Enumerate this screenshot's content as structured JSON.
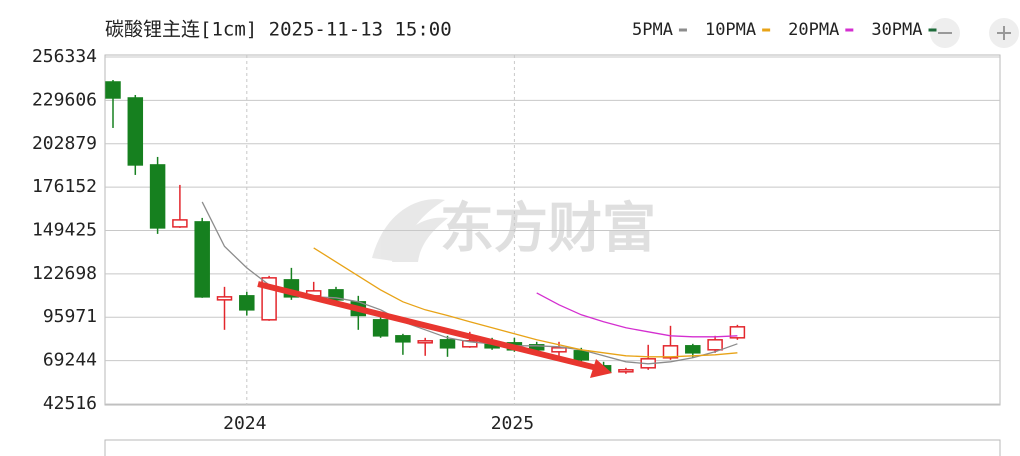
{
  "chart_data": {
    "type": "candlestick",
    "title": "碳酸锂主连[1cm] 2025-11-13 15:00",
    "watermark": "东方财富",
    "up_color": "#e3262c",
    "down_color": "#16801f",
    "categories": [
      null,
      null,
      null,
      null,
      null,
      null,
      "2024",
      null,
      null,
      null,
      null,
      null,
      null,
      null,
      null,
      null,
      null,
      null,
      "2025",
      null,
      null,
      null,
      null,
      null,
      null,
      null,
      null,
      null,
      null
    ],
    "open": [
      240939,
      231086,
      189828,
      151648,
      154727,
      106692,
      109158,
      94379,
      119010,
      109158,
      112853,
      105460,
      94379,
      84526,
      80216,
      82064,
      77755,
      80216,
      80216,
      78984,
      74675,
      75291,
      66046,
      62351,
      64814,
      70976,
      78368,
      75907,
      83294
    ],
    "high": [
      242171,
      232934,
      194754,
      177512,
      157190,
      114701,
      111621,
      121474,
      126396,
      117779,
      114701,
      109158,
      97041,
      85758,
      83294,
      84526,
      86989,
      83294,
      83294,
      80832,
      80832,
      77139,
      68512,
      64814,
      78984,
      90684,
      79600,
      84526,
      91300
    ],
    "low": [
      212612,
      183670,
      147337,
      151032,
      107926,
      88221,
      97041,
      93763,
      106692,
      106692,
      105460,
      88221,
      83294,
      72826,
      72210,
      71594,
      77139,
      75907,
      74675,
      74044,
      69744,
      68512,
      61134,
      61134,
      63583,
      69744,
      70976,
      74044,
      82064
    ],
    "close": [
      231086,
      189828,
      151032,
      155959,
      108542,
      108542,
      100537,
      120242,
      108542,
      112237,
      106692,
      97041,
      84526,
      80832,
      81448,
      77139,
      81448,
      77139,
      75907,
      75907,
      77139,
      69744,
      62351,
      63583,
      70360,
      78368,
      74044,
      82064,
      90068
    ],
    "series": [
      {
        "name": "5PMA",
        "color": "#8c8c8c",
        "values": [
          null,
          null,
          null,
          null,
          167043,
          139643,
          126396,
          115932,
          111621,
          108542,
          107926,
          105460,
          100537,
          93147,
          88221,
          83294,
          80832,
          79600,
          78368,
          78368,
          77755,
          75907,
          72210,
          68512,
          67281,
          68512,
          70976,
          74675,
          79600
        ]
      },
      {
        "name": "10PMA",
        "color": "#e8a317",
        "values": [
          null,
          null,
          null,
          null,
          null,
          null,
          null,
          null,
          null,
          138716,
          130094,
          121474,
          112853,
          105460,
          100537,
          97041,
          93147,
          89449,
          85758,
          82064,
          78984,
          75907,
          74057,
          72210,
          71594,
          71594,
          72210,
          72826,
          74057
        ]
      },
      {
        "name": "20PMA",
        "color": "#d42fd0",
        "values": [
          null,
          null,
          null,
          null,
          null,
          null,
          null,
          null,
          null,
          null,
          null,
          null,
          null,
          null,
          null,
          null,
          null,
          null,
          null,
          111005,
          103616,
          97458,
          93147,
          89449,
          86989,
          84526,
          83910,
          83910,
          84526
        ]
      },
      {
        "name": "30PMA",
        "color": "#1d6b3a",
        "values": [
          null,
          null,
          null,
          null,
          null,
          null,
          null,
          null,
          null,
          null,
          null,
          null,
          null,
          null,
          null,
          null,
          null,
          null,
          null,
          null,
          null,
          null,
          null,
          null,
          null,
          null,
          null,
          null,
          null
        ]
      }
    ],
    "ylim": [
      42516,
      256334
    ],
    "yticks": [
      42516,
      69244,
      95971,
      122698,
      149425,
      176152,
      202879,
      229606,
      256334
    ],
    "grid": true
  }
}
